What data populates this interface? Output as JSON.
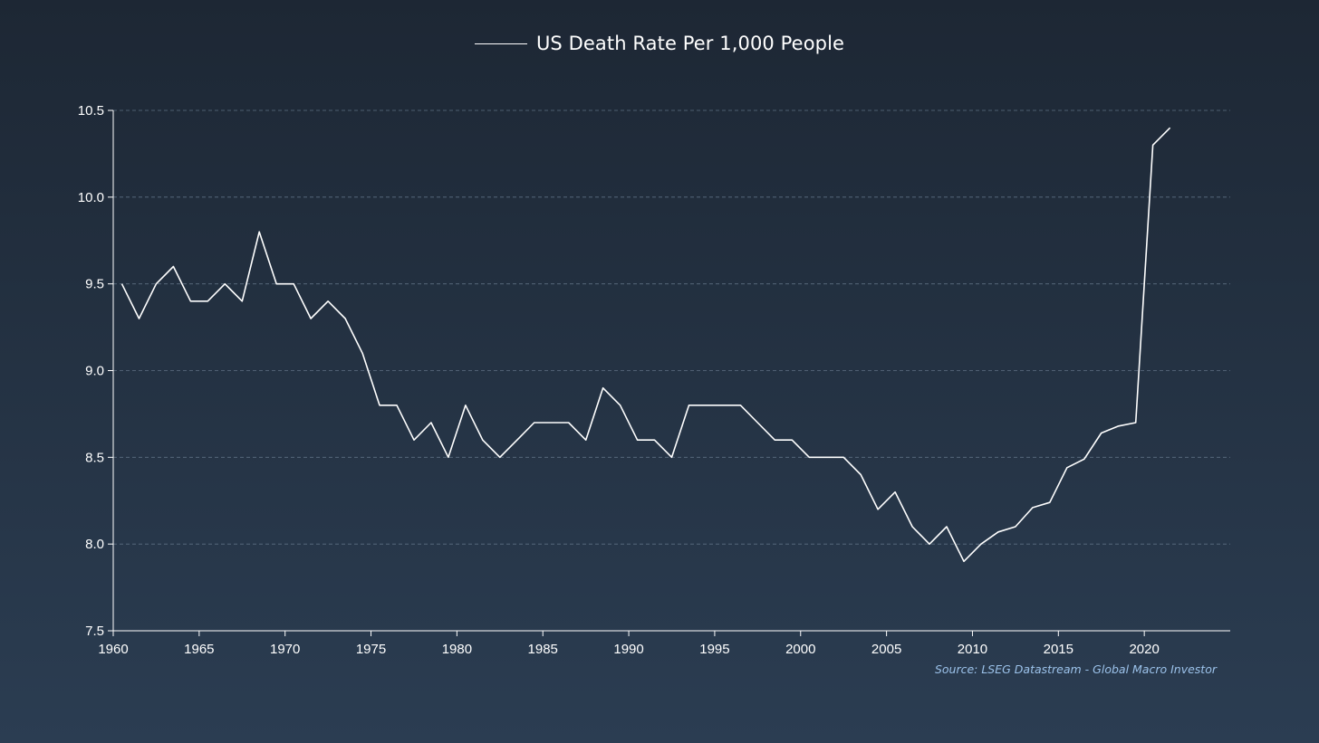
{
  "chart_data": {
    "type": "line",
    "title": "",
    "xlabel": "",
    "ylabel": "",
    "legend": {
      "position": "top-center",
      "entries": [
        "US Death Rate Per 1,000 People"
      ]
    },
    "xlim": [
      1960,
      2025
    ],
    "ylim": [
      7.5,
      10.5
    ],
    "grid": "horizontal-dashed",
    "x_ticks": [
      "1960",
      "1965",
      "1970",
      "1975",
      "1980",
      "1985",
      "1990",
      "1995",
      "2000",
      "2005",
      "2010",
      "2015",
      "2020"
    ],
    "y_ticks": [
      "10.5",
      "10.0",
      "9.5",
      "9.0",
      "8.5",
      "8.0",
      "7.5"
    ],
    "series": [
      {
        "name": "US Death Rate Per 1,000 People",
        "color": "#ffffff",
        "x": [
          1960,
          1961,
          1962,
          1963,
          1964,
          1965,
          1966,
          1967,
          1968,
          1969,
          1970,
          1971,
          1972,
          1973,
          1974,
          1975,
          1976,
          1977,
          1978,
          1979,
          1980,
          1981,
          1982,
          1983,
          1984,
          1985,
          1986,
          1987,
          1988,
          1989,
          1990,
          1991,
          1992,
          1993,
          1994,
          1995,
          1996,
          1997,
          1998,
          1999,
          2000,
          2001,
          2002,
          2003,
          2004,
          2005,
          2006,
          2007,
          2008,
          2009,
          2010,
          2011,
          2012,
          2013,
          2014,
          2015,
          2016,
          2017,
          2018,
          2019,
          2020,
          2021
        ],
        "y": [
          9.5,
          9.3,
          9.5,
          9.6,
          9.4,
          9.4,
          9.5,
          9.4,
          9.8,
          9.5,
          9.5,
          9.3,
          9.4,
          9.3,
          9.1,
          8.8,
          8.8,
          8.6,
          8.7,
          8.5,
          8.8,
          8.6,
          8.5,
          8.6,
          8.7,
          8.7,
          8.7,
          8.6,
          8.9,
          8.8,
          8.6,
          8.6,
          8.5,
          8.8,
          8.8,
          8.8,
          8.8,
          8.7,
          8.6,
          8.6,
          8.5,
          8.5,
          8.5,
          8.4,
          8.2,
          8.3,
          8.1,
          8.0,
          8.1,
          7.9,
          8.0,
          8.07,
          8.1,
          8.21,
          8.24,
          8.44,
          8.49,
          8.64,
          8.68,
          8.7,
          10.3,
          10.4
        ]
      }
    ],
    "source": "Source: LSEG Datastream - Global Macro Investor"
  },
  "colors": {
    "background_top": "#1d2734",
    "background_bottom": "#2b3d52",
    "line": "#ffffff",
    "grid": "#5d6f82",
    "source_text": "#9cc2ea"
  }
}
